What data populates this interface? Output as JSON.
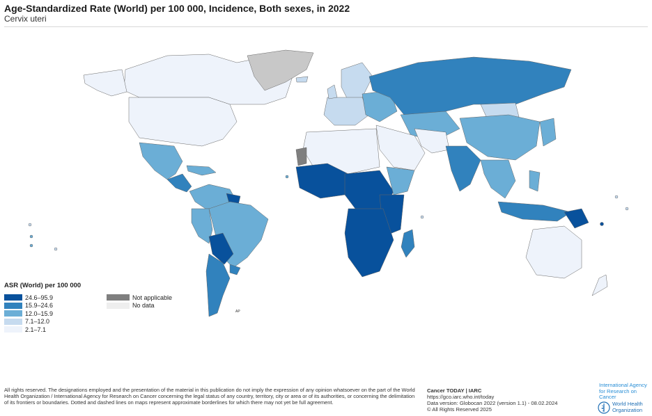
{
  "header": {
    "title": "Age-Standardized Rate (World) per 100 000, Incidence, Both sexes, in 2022",
    "subtitle": "Cervix uteri"
  },
  "legend": {
    "title": "ASR (World) per 100 000",
    "bins": [
      {
        "label": "24.6–95.9",
        "color": "#08519c"
      },
      {
        "label": "15.9–24.6",
        "color": "#3182bd"
      },
      {
        "label": "12.0–15.9",
        "color": "#6baed6"
      },
      {
        "label": "7.1–12.0",
        "color": "#c6dbef"
      },
      {
        "label": "2.1–7.1",
        "color": "#eef3fb"
      }
    ],
    "extra": [
      {
        "label": "Not applicable",
        "color": "#7f7f7f"
      },
      {
        "label": "No data",
        "color": "#eeeeee"
      }
    ]
  },
  "footer": {
    "disclaimer": "All rights reserved. The designations employed and the presentation of the material in this publication do not imply the expression of any opinion whatsoever on the part of the World Health Organization / International Agency for Research on Cancer concerning the legal status of any country, territory, city or area or of its authorities, or concerning the delimitation of its frontiers or boundaries. Dotted and dashed lines on maps represent approximate borderlines for which there may not yet be full agreement.",
    "source_title": "Cancer TODAY | IARC",
    "source_url": "https://gco.iarc.who.int/today",
    "data_version": "Data version: Globocan 2022 (version 1.1) - 08.02.2024",
    "copyright": "© All Rights Reserved 2025",
    "iarc_line1": "International Agency",
    "iarc_line2": "for Research on Cancer",
    "who_line1": "World Health",
    "who_line2": "Organization"
  },
  "map_labels": {
    "ap_label": "AP"
  }
}
